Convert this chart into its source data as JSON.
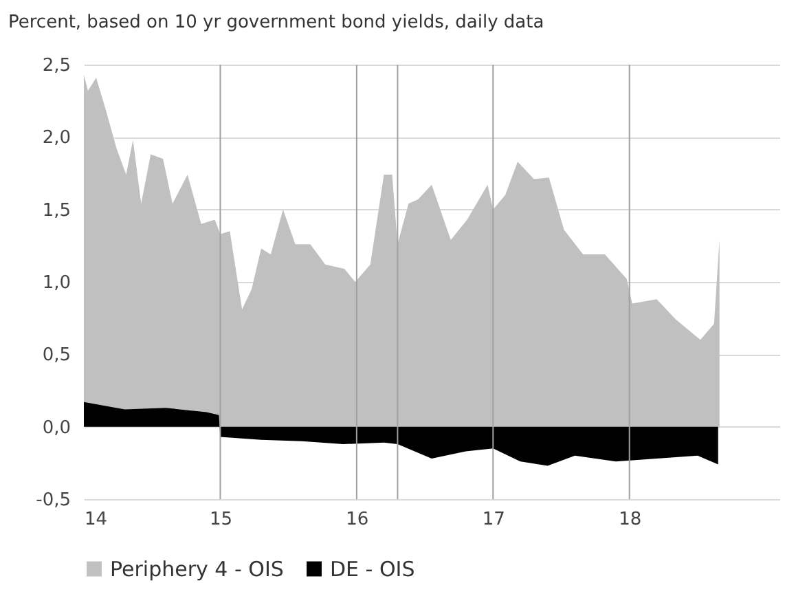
{
  "chart_data": {
    "type": "area",
    "title": "Percent, based on 10 yr government bond yields, daily data",
    "series": [
      {
        "name": "Periphery 4 - OIS",
        "color": "#c0c0c0",
        "x": [
          14.0,
          14.03,
          14.09,
          14.16,
          14.24,
          14.31,
          14.36,
          14.42,
          14.49,
          14.58,
          14.65,
          14.76,
          14.86,
          14.96,
          15.0,
          15.07,
          15.16,
          15.23,
          15.3,
          15.37,
          15.46,
          15.55,
          15.66,
          15.77,
          15.91,
          15.99,
          16.1,
          16.2,
          16.26,
          16.3,
          16.38,
          16.45,
          16.55,
          16.69,
          16.81,
          16.96,
          17.0,
          17.09,
          17.18,
          17.3,
          17.41,
          17.52,
          17.66,
          17.82,
          17.98,
          18.02,
          18.2,
          18.34,
          18.52,
          18.62,
          18.66
        ],
        "values": [
          2.43,
          2.32,
          2.41,
          2.19,
          1.92,
          1.74,
          1.98,
          1.54,
          1.88,
          1.85,
          1.54,
          1.74,
          1.4,
          1.43,
          1.33,
          1.35,
          0.81,
          0.95,
          1.23,
          1.19,
          1.5,
          1.26,
          1.26,
          1.12,
          1.09,
          1.0,
          1.12,
          1.74,
          1.74,
          1.26,
          1.54,
          1.57,
          1.67,
          1.29,
          1.43,
          1.67,
          1.5,
          1.6,
          1.83,
          1.71,
          1.72,
          1.36,
          1.19,
          1.19,
          1.02,
          0.85,
          0.88,
          0.74,
          0.6,
          0.71,
          1.29
        ]
      },
      {
        "name": "DE - OIS",
        "color": "#000000",
        "x": [
          14.0,
          14.3,
          14.6,
          14.9,
          14.99,
          15.0,
          15.3,
          15.6,
          15.9,
          16.2,
          16.3,
          16.55,
          16.8,
          17.0,
          17.2,
          17.4,
          17.6,
          17.9,
          18.2,
          18.5,
          18.65
        ],
        "values": [
          0.17,
          0.12,
          0.13,
          0.1,
          0.08,
          -0.07,
          -0.09,
          -0.1,
          -0.12,
          -0.11,
          -0.12,
          -0.22,
          -0.17,
          -0.15,
          -0.24,
          -0.27,
          -0.2,
          -0.24,
          -0.22,
          -0.2,
          -0.26
        ]
      }
    ],
    "xlim": [
      14,
      19.1
    ],
    "xticks": [
      14,
      15,
      16,
      17,
      18
    ],
    "ylim": [
      -0.5,
      2.5
    ],
    "yticks": [
      {
        "value": -0.5,
        "label": "-0,5"
      },
      {
        "value": 0,
        "label": "0,0"
      },
      {
        "value": 0.5,
        "label": "0,5"
      },
      {
        "value": 1,
        "label": "1,0"
      },
      {
        "value": 1.5,
        "label": "1,5"
      },
      {
        "value": 2,
        "label": "2,0"
      },
      {
        "value": 2.5,
        "label": "2,5"
      }
    ],
    "ref_lines": [
      {
        "axis": "x",
        "value": 15,
        "color": "#a0a0a0"
      },
      {
        "axis": "x",
        "value": 16,
        "color": "#a0a0a0"
      },
      {
        "axis": "x",
        "value": 16.3,
        "color": "#a0a0a0"
      },
      {
        "axis": "x",
        "value": 17,
        "color": "#a0a0a0"
      },
      {
        "axis": "x",
        "value": 18,
        "color": "#a0a0a0"
      }
    ],
    "grid": "y",
    "legend": "bottom"
  }
}
